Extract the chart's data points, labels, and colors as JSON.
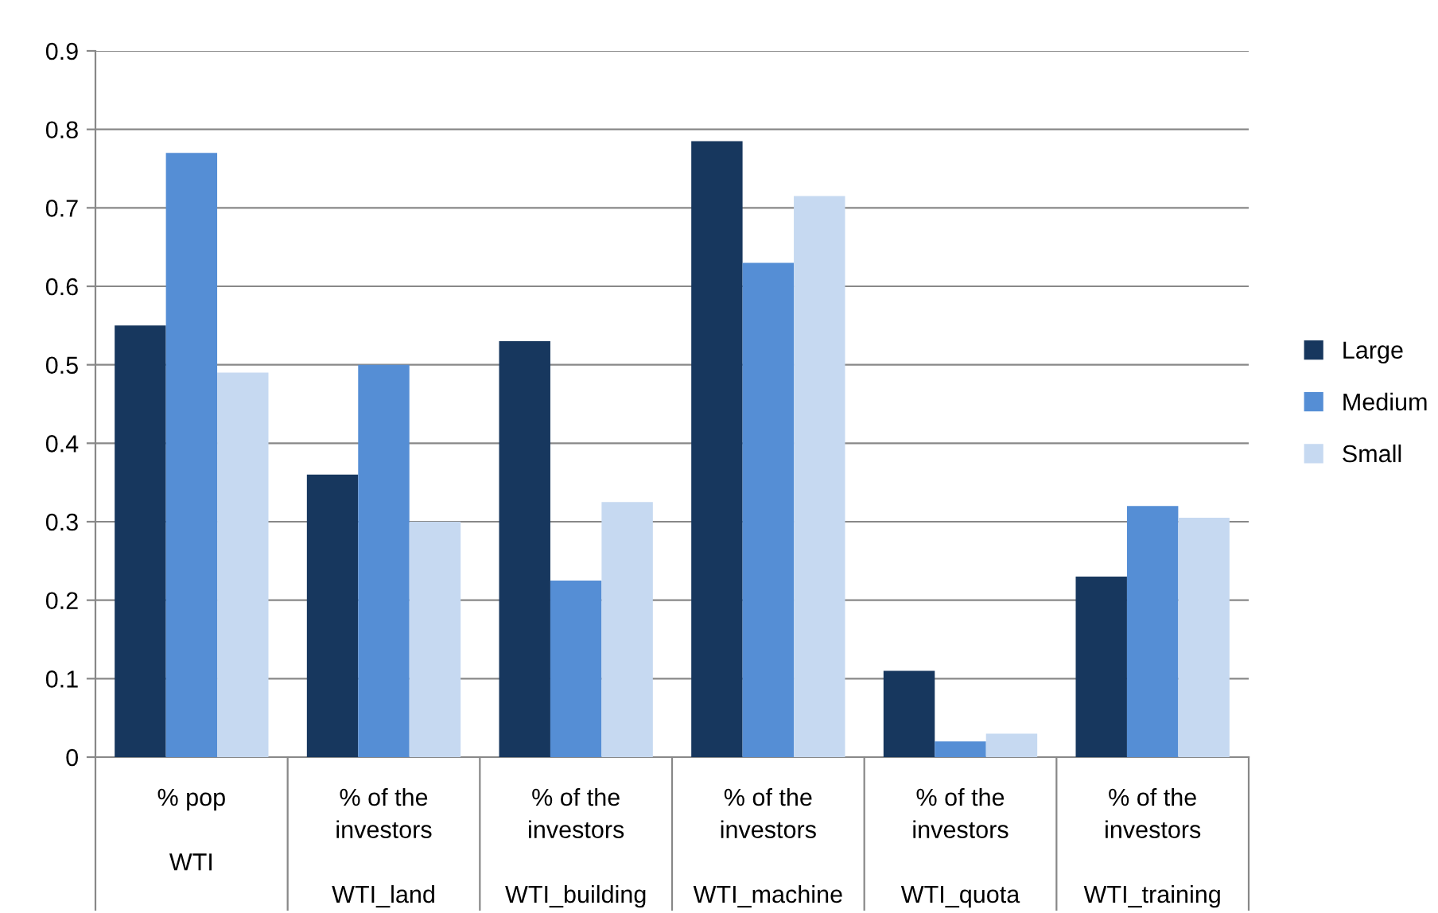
{
  "chart_data": {
    "type": "bar",
    "categories": [
      "% pop\n\nWTI",
      "% of the\ninvestors\n\nWTI_land",
      "% of the\ninvestors\n\nWTI_building",
      "% of the\ninvestors\n\nWTI_machine",
      "% of the\ninvestors\n\nWTI_quota",
      "% of the\ninvestors\n\nWTI_training"
    ],
    "series": [
      {
        "name": "Large",
        "color": "#17375e",
        "values": [
          0.55,
          0.36,
          0.53,
          0.785,
          0.11,
          0.23
        ]
      },
      {
        "name": "Medium",
        "color": "#558ed5",
        "values": [
          0.77,
          0.5,
          0.225,
          0.63,
          0.02,
          0.32
        ]
      },
      {
        "name": "Small",
        "color": "#c6d9f1",
        "values": [
          0.49,
          0.3,
          0.325,
          0.715,
          0.03,
          0.305
        ]
      }
    ],
    "ylim": [
      0,
      0.9
    ],
    "yticks": [
      0,
      0.1,
      0.2,
      0.3,
      0.4,
      0.5,
      0.6,
      0.7,
      0.8,
      0.9
    ],
    "grid": "y",
    "legend": "right"
  }
}
